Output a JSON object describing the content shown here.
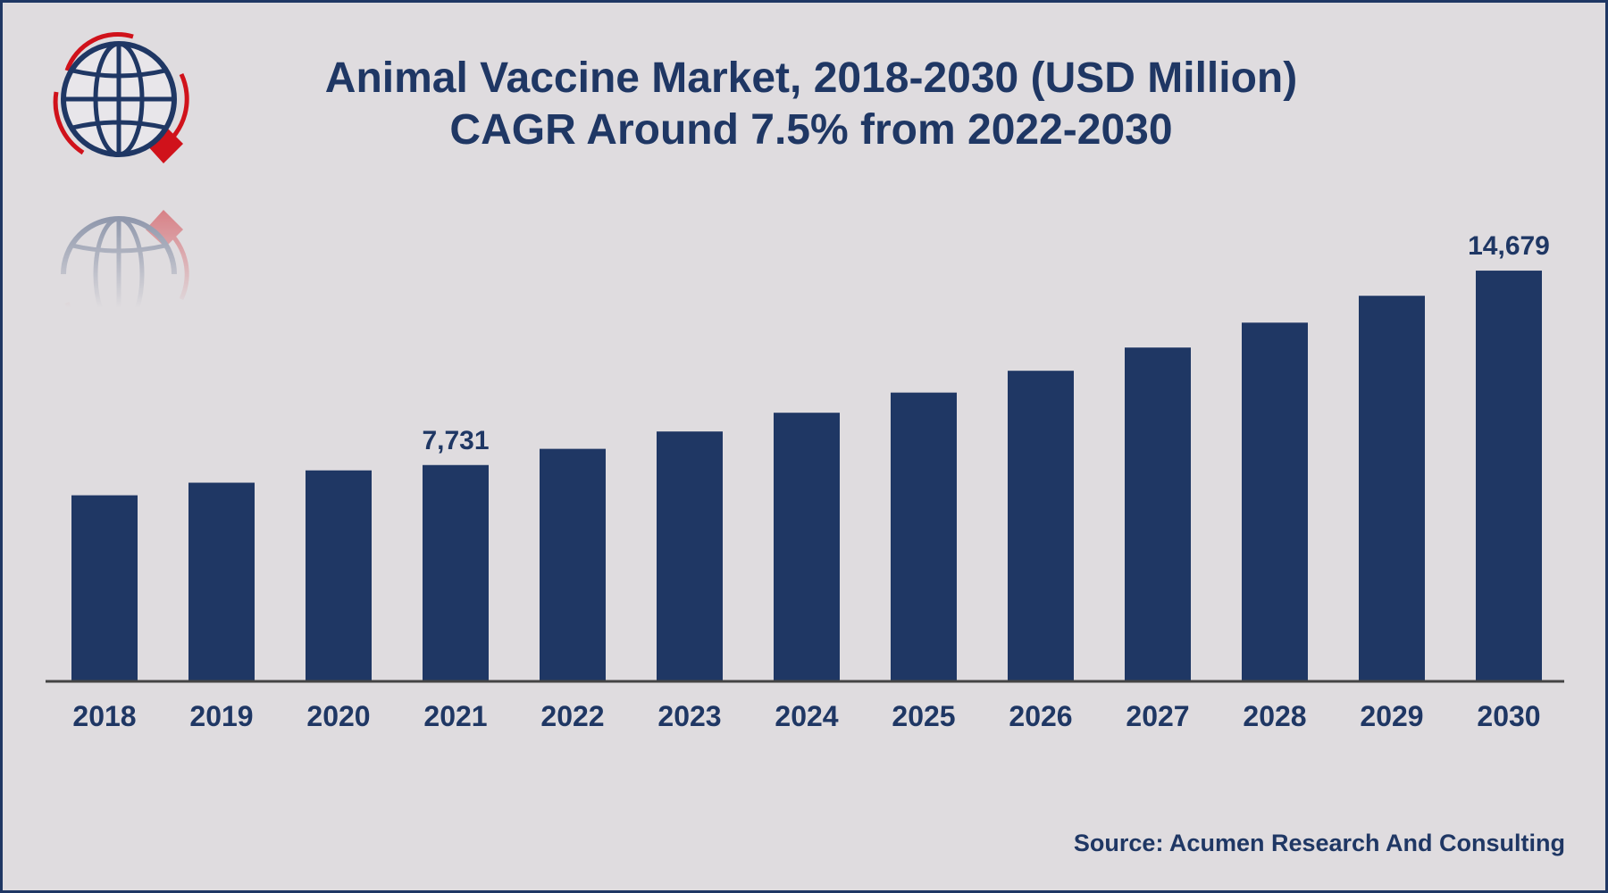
{
  "header": {
    "title_line1": "Animal Vaccine Market, 2018-2030 (USD Million)",
    "title_line2": "CAGR Around 7.5% from 2022-2030"
  },
  "footer": {
    "source": "Source: Acumen Research And Consulting"
  },
  "logo": {
    "icon": "globe-magnifier-logo-icon"
  },
  "colors": {
    "bar": "#1f3764",
    "background": "#dfdcdf",
    "text": "#1f3764",
    "logo_accent": "#d0121b"
  },
  "chart_data": {
    "type": "bar",
    "title": "Animal Vaccine Market, 2018-2030 (USD Million)",
    "subtitle": "CAGR Around 7.5% from 2022-2030",
    "xlabel": "",
    "ylabel": "",
    "categories": [
      "2018",
      "2019",
      "2020",
      "2021",
      "2022",
      "2023",
      "2024",
      "2025",
      "2026",
      "2027",
      "2028",
      "2029",
      "2030"
    ],
    "values": [
      6650,
      7100,
      7540,
      7731,
      8310,
      8930,
      9600,
      10320,
      11100,
      11930,
      12820,
      13780,
      14679
    ],
    "data_labels": [
      {
        "category": "2021",
        "text": "7,731"
      },
      {
        "category": "2030",
        "text": "14,679"
      }
    ],
    "ylim": [
      0,
      15000
    ],
    "grid": false,
    "legend": "none"
  }
}
